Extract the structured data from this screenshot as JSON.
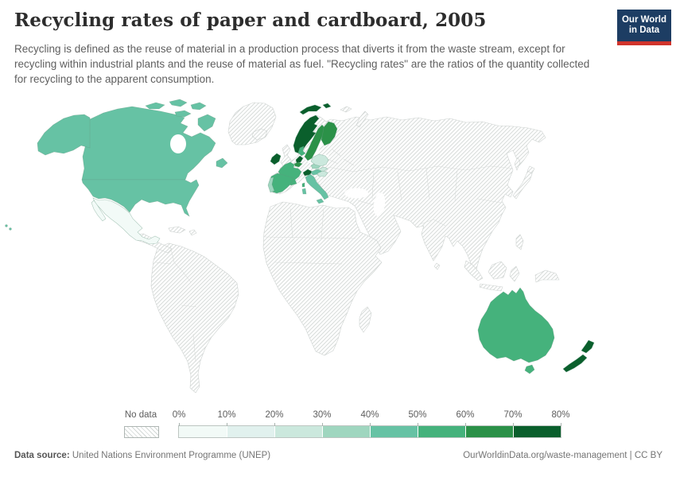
{
  "header": {
    "title": "Recycling rates of paper and cardboard, 2005",
    "subtitle": "Recycling is defined as the reuse of material in a production process that diverts it from the waste stream, except for recycling within industrial plants and the reuse of material as fuel. \"Recycling rates\" are the ratios of the quantity collected for recycling to the apparent consumption.",
    "logo": {
      "line1": "Our World",
      "line2": "in Data",
      "bg_color": "#1d3d63",
      "accent_color": "#d0342c"
    }
  },
  "legend": {
    "no_data_label": "No data",
    "tick_labels": [
      "0%",
      "10%",
      "20%",
      "30%",
      "40%",
      "50%",
      "60%",
      "70%",
      "80%"
    ],
    "bin_colors": [
      "#f2faf7",
      "#e1f1ee",
      "#cbe8dd",
      "#9fd6bf",
      "#66c2a4",
      "#45b27c",
      "#2b9148",
      "#0a5f2c"
    ],
    "hatch_line_color": "#d8dcda"
  },
  "footer": {
    "source_label": "Data source:",
    "source_value": " United Nations Environment Programme (UNEP)",
    "credit": "OurWorldinData.org/waste-management | CC BY"
  },
  "chart_data": {
    "type": "choropleth_map",
    "title": "Recycling rates of paper and cardboard, 2005",
    "unit": "%",
    "legend_bins": [
      "0-10%",
      "10-20%",
      "20-30%",
      "30-40%",
      "40-50%",
      "50-60%",
      "60-70%",
      "70-80%"
    ],
    "no_data_style": "hatched",
    "countries": [
      {
        "id": "canada",
        "country": "Canada",
        "range": "40-50%",
        "bin": 4
      },
      {
        "id": "united-states",
        "country": "United States",
        "range": "40-50%",
        "bin": 4
      },
      {
        "id": "mexico",
        "country": "Mexico",
        "range": "0-10%",
        "bin": 0
      },
      {
        "id": "ireland",
        "country": "Ireland",
        "range": "70-80%",
        "bin": 7
      },
      {
        "id": "norway",
        "country": "Norway",
        "range": "70-80%",
        "bin": 7
      },
      {
        "id": "sweden",
        "country": "Sweden",
        "range": "60-70%",
        "bin": 6
      },
      {
        "id": "finland",
        "country": "Finland",
        "range": "60-70%",
        "bin": 6
      },
      {
        "id": "denmark",
        "country": "Denmark",
        "range": "50-60%",
        "bin": 5
      },
      {
        "id": "netherlands",
        "country": "Netherlands",
        "range": "70-80%",
        "bin": 7
      },
      {
        "id": "belgium",
        "country": "Belgium",
        "range": "60-70%",
        "bin": 6
      },
      {
        "id": "france",
        "country": "France",
        "range": "50-60%",
        "bin": 5
      },
      {
        "id": "spain",
        "country": "Spain",
        "range": "50-60%",
        "bin": 5
      },
      {
        "id": "portugal",
        "country": "Portugal",
        "range": "30-40%",
        "bin": 3
      },
      {
        "id": "switzerland",
        "country": "Switzerland",
        "range": "70-80%",
        "bin": 7
      },
      {
        "id": "italy",
        "country": "Italy",
        "range": "40-50%",
        "bin": 4
      },
      {
        "id": "austria",
        "country": "Austria",
        "range": "40-50%",
        "bin": 4
      },
      {
        "id": "czechia",
        "country": "Czechia",
        "range": "30-40%",
        "bin": 3
      },
      {
        "id": "slovakia",
        "country": "Slovakia",
        "range": "20-30%",
        "bin": 2
      },
      {
        "id": "hungary",
        "country": "Hungary",
        "range": "20-30%",
        "bin": 2
      },
      {
        "id": "poland",
        "country": "Poland",
        "range": "20-30%",
        "bin": 2
      },
      {
        "id": "australia",
        "country": "Australia",
        "range": "50-60%",
        "bin": 5
      },
      {
        "id": "new-zealand",
        "country": "New Zealand",
        "range": "70-80%",
        "bin": 7
      }
    ]
  }
}
